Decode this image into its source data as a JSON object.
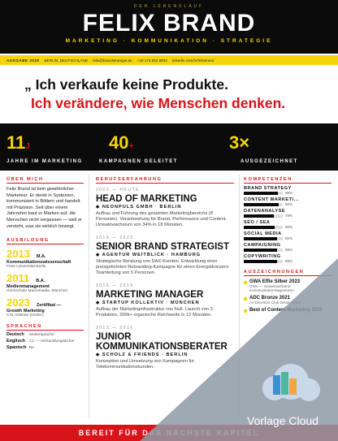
{
  "header": {
    "kicker": "DER LEBENSLAUF",
    "name": "FELIX BRAND",
    "tagline": "MARKETING · KOMMUNIKATION · STRATEGIE"
  },
  "contact": {
    "edition": "AUSGABE 2025",
    "items": [
      "BERLIN, DEUTSCHLAND",
      "felix@brandstrategie.de",
      "+49 176 552 8834",
      "linkedin.com/in/felixbrand"
    ]
  },
  "quote": {
    "line1": "„ Ich verkaufe keine Produkte.",
    "line2": "Ich verändere, wie Menschen denken."
  },
  "stats": [
    {
      "number": "11",
      "suffix": "J",
      "label": "JAHRE IM MARKETING"
    },
    {
      "number": "40",
      "suffix": "+",
      "label": "KAMPAGNEN GELEITET"
    },
    {
      "number": "3×",
      "label": "AUSGEZEICHNET"
    }
  ],
  "about": {
    "heading": "ÜBER MICH",
    "text": "Felix Brand ist kein gewöhnlicher Marketeer. Er denkt in Systemen, kommuniziert in Bildern und handelt mit Präzision. Seit über einem Jahrzehnt baut er Marken auf, die Menschen nicht vergessen — weil er versteht, was sie wirklich bewegt."
  },
  "education": {
    "heading": "AUSBILDUNG",
    "items": [
      {
        "year": "2013",
        "degree": "M.A.",
        "subject": "Kommunikationswissenschaft",
        "school": "Freie Universität Berlin"
      },
      {
        "year": "2011",
        "degree": "B.A.",
        "subject": "Medienmanagement",
        "school": "Hochschule Macromedia, München"
      },
      {
        "year": "2023",
        "degree": "Zertifikat —",
        "subject": "Growth Marketing",
        "school": "CXL Institute (Online)"
      }
    ]
  },
  "languages": {
    "heading": "SPRACHEN",
    "items": [
      {
        "name": "Deutsch",
        "level": "Muttersprache"
      },
      {
        "name": "Englisch",
        "level": "C1 — Verhandlungssicher"
      },
      {
        "name": "Spanisch",
        "level": "B2"
      }
    ]
  },
  "experience": {
    "heading": "BERUFSERFAHRUNG",
    "items": [
      {
        "period": "2022 — HEUTE",
        "title": "HEAD OF MARKETING",
        "company": "◆ NEONPULS GMBH · BERLIN",
        "text": "Aufbau und Führung des gesamten Marketingbereichs (8 Personen). Verantwortung für Brand, Performance und Content. Umsatzwachstum von 34% in 18 Monaten."
      },
      {
        "period": "2019 — 2022",
        "title": "SENIOR BRAND STRATEGIST",
        "company": "◆ AGENTUR WEITBLICK · HAMBURG",
        "text": "Strategische Beratung von DAX-Kunden. Entwicklung einer preisgekrönten Rebranding-Kampagne für einen Energiekonzern. Teamleitung von 5 Personen."
      },
      {
        "period": "2016 — 2019",
        "title": "MARKETING MANAGER",
        "company": "◆ STARTUP KOLLEKTIV · MÜNCHEN",
        "text": "Aufbau der Marketinginfrastruktur von Null. Launch von 3 Produkten, 200k+ organische Reichweite in 12 Monaten."
      },
      {
        "period": "2013 — 2016",
        "title": "JUNIOR KOMMUNIKATIONSBERATER",
        "company": "◆ SCHOLZ & FRIENDS · BERLIN",
        "text": "Konzeption und Umsetzung von Kampagnen für Telekommunikationskunden."
      }
    ]
  },
  "skills": {
    "heading": "KOMPETENZEN",
    "items": [
      {
        "name": "BRAND STRATEGY",
        "level": 88,
        "label": "88%"
      },
      {
        "name": "CONTENT MARKETI...",
        "level": 90,
        "label": "90%"
      },
      {
        "name": "DATENANALYSE",
        "level": 78,
        "label": "78%"
      },
      {
        "name": "SEO / SEA",
        "level": 80,
        "label": "80%"
      },
      {
        "name": "SOCIAL MEDIA",
        "level": 85,
        "label": "85%"
      },
      {
        "name": "CAMPAIGNING",
        "level": 86,
        "label": "86%"
      },
      {
        "name": "COPYWRITING",
        "level": 85,
        "label": "85%"
      }
    ]
  },
  "awards": {
    "heading": "AUSZEICHNUNGEN",
    "items": [
      {
        "title": "GWA Effie Silber 2023",
        "org": "GWA — Gesamtverband Kommunikationsagenturen"
      },
      {
        "title": "ADC Bronze 2021",
        "org": "Art Directors Club Deutschland"
      },
      {
        "title": "Best of Content Marketing 2020",
        "org": ""
      }
    ]
  },
  "footer": {
    "text": "BEREIT FÜR DAS NÄCHSTE KAPITEL"
  },
  "watermark": {
    "text": "Vorlage Cloud"
  }
}
